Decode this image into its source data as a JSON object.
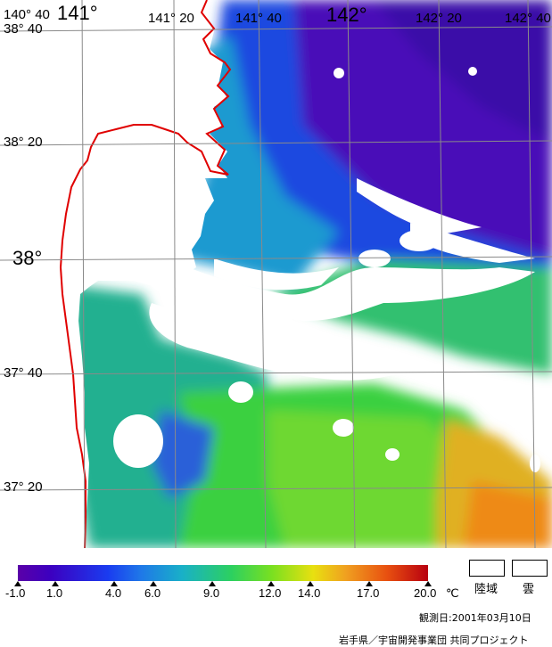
{
  "map": {
    "lat_labels": [
      {
        "text": "38° 40",
        "size": "small"
      },
      {
        "text": "38° 20",
        "size": "small"
      },
      {
        "text": "38°",
        "size": "big"
      },
      {
        "text": "37° 40",
        "size": "small"
      },
      {
        "text": "37° 20",
        "size": "small"
      }
    ],
    "lon_labels": [
      {
        "text": "140° 40",
        "size": "small"
      },
      {
        "text": "141°",
        "size": "big"
      },
      {
        "text": "141° 20",
        "size": "small"
      },
      {
        "text": "141° 40",
        "size": "small"
      },
      {
        "text": "142°",
        "size": "big"
      },
      {
        "text": "142° 20",
        "size": "small"
      },
      {
        "text": "142° 40",
        "size": "small"
      }
    ],
    "coastline_color": "#e00000",
    "land_color": "#ffffff",
    "cloud_color": "#ffffff"
  },
  "legend": {
    "ticks": [
      "-1.0",
      "1.0",
      "4.0",
      "6.0",
      "9.0",
      "12.0",
      "14.0",
      "17.0",
      "20.0"
    ],
    "unit": "℃",
    "land_label": "陸域",
    "cloud_label": "雲"
  },
  "footer": {
    "observation_date": "観測日:2001年03月10日",
    "credit": "岩手県／宇宙開発事業団 共同プロジェクト"
  }
}
